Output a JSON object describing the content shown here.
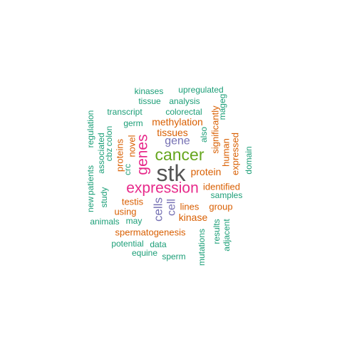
{
  "colors": {
    "teal": "#1b9e77",
    "orange": "#d95f02",
    "purple": "#7570b3",
    "magenta": "#e7298a",
    "green": "#66a61e",
    "gray": "#555555"
  },
  "words": [
    {
      "text": "stk",
      "color": "gray"
    },
    {
      "text": "cancer",
      "color": "green"
    },
    {
      "text": "expression",
      "color": "magenta"
    },
    {
      "text": "genes",
      "color": "magenta"
    },
    {
      "text": "gene",
      "color": "purple"
    },
    {
      "text": "cells",
      "color": "purple"
    },
    {
      "text": "cell",
      "color": "purple"
    },
    {
      "text": "tissues",
      "color": "orange"
    },
    {
      "text": "methylation",
      "color": "orange"
    },
    {
      "text": "protein",
      "color": "orange"
    },
    {
      "text": "kinase",
      "color": "orange"
    },
    {
      "text": "lines",
      "color": "orange"
    },
    {
      "text": "identified",
      "color": "orange"
    },
    {
      "text": "testis",
      "color": "orange"
    },
    {
      "text": "using",
      "color": "orange"
    },
    {
      "text": "novel",
      "color": "orange"
    },
    {
      "text": "proteins",
      "color": "orange"
    },
    {
      "text": "human",
      "color": "orange"
    },
    {
      "text": "expressed",
      "color": "orange"
    },
    {
      "text": "significantly",
      "color": "orange"
    },
    {
      "text": "group",
      "color": "orange"
    },
    {
      "text": "spermatogenesis",
      "color": "orange"
    },
    {
      "text": "upregulated",
      "color": "teal"
    },
    {
      "text": "kinases",
      "color": "teal"
    },
    {
      "text": "tissue",
      "color": "teal"
    },
    {
      "text": "analysis",
      "color": "teal"
    },
    {
      "text": "transcript",
      "color": "teal"
    },
    {
      "text": "colorectal",
      "color": "teal"
    },
    {
      "text": "mageg",
      "color": "teal"
    },
    {
      "text": "germ",
      "color": "teal"
    },
    {
      "text": "regulation",
      "color": "teal"
    },
    {
      "text": "associated",
      "color": "teal"
    },
    {
      "text": "colon",
      "color": "teal"
    },
    {
      "text": "cbz",
      "color": "teal"
    },
    {
      "text": "crc",
      "color": "teal"
    },
    {
      "text": "also",
      "color": "teal"
    },
    {
      "text": "domain",
      "color": "teal"
    },
    {
      "text": "new",
      "color": "teal"
    },
    {
      "text": "patients",
      "color": "teal"
    },
    {
      "text": "study",
      "color": "teal"
    },
    {
      "text": "samples",
      "color": "teal"
    },
    {
      "text": "may",
      "color": "teal"
    },
    {
      "text": "animals",
      "color": "teal"
    },
    {
      "text": "results",
      "color": "teal"
    },
    {
      "text": "adjacent",
      "color": "teal"
    },
    {
      "text": "potential",
      "color": "teal"
    },
    {
      "text": "data",
      "color": "teal"
    },
    {
      "text": "equine",
      "color": "teal"
    },
    {
      "text": "sperm",
      "color": "teal"
    },
    {
      "text": "mutations",
      "color": "teal"
    }
  ]
}
